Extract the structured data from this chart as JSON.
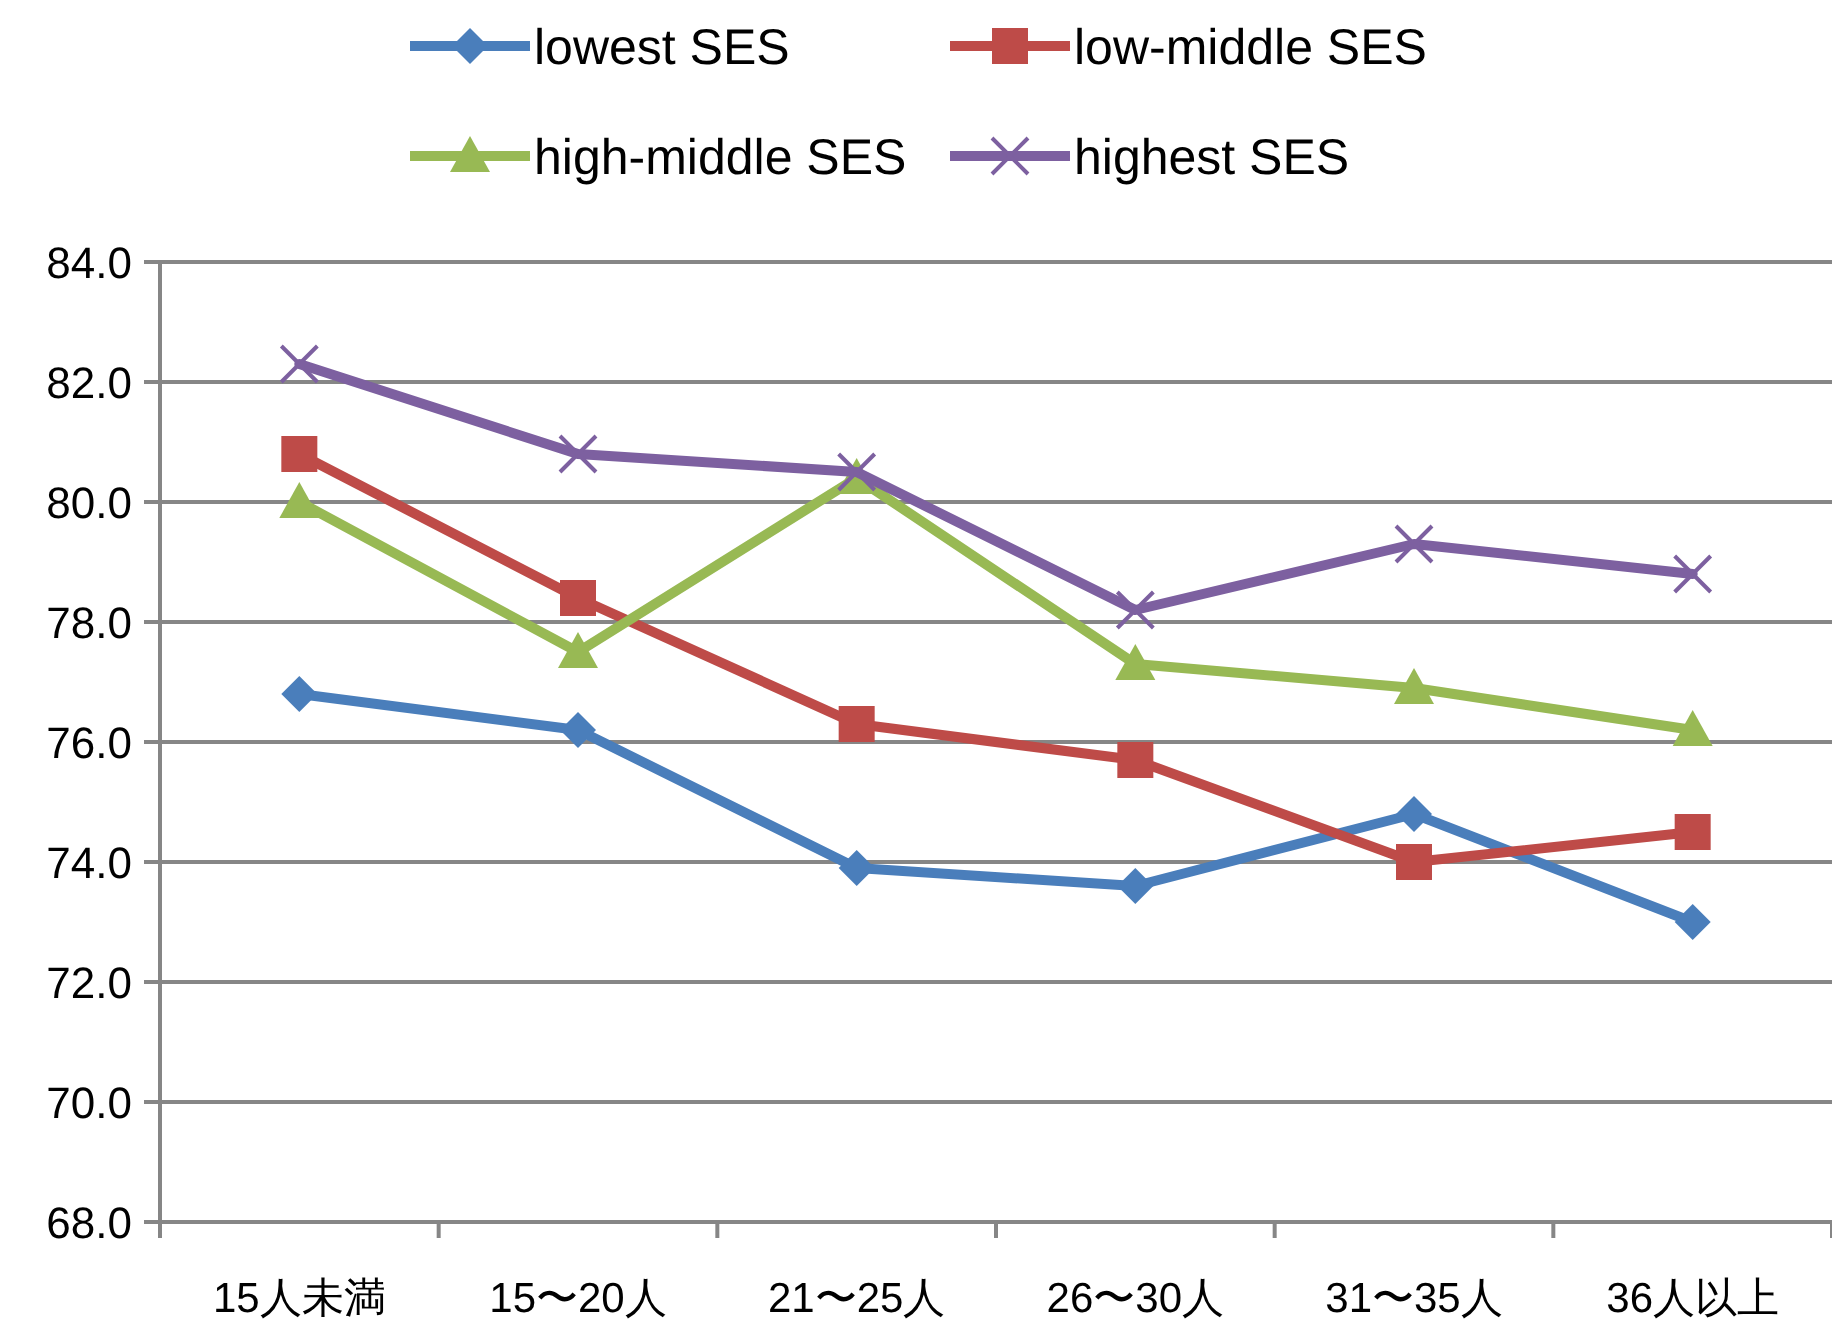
{
  "chart_data": {
    "type": "line",
    "categories": [
      "15人未満",
      "15〜20人",
      "21〜25人",
      "26〜30人",
      "31〜35人",
      "36人以上"
    ],
    "series": [
      {
        "name": "lowest SES",
        "color": "#4a7ebb",
        "marker": "diamond",
        "values": [
          76.8,
          76.2,
          73.9,
          73.6,
          74.8,
          73.0
        ]
      },
      {
        "name": "low-middle SES",
        "color": "#be4b48",
        "marker": "square",
        "values": [
          80.8,
          78.4,
          76.3,
          75.7,
          74.0,
          74.5
        ]
      },
      {
        "name": "high-middle SES",
        "color": "#98b954",
        "marker": "triangle",
        "values": [
          80.0,
          77.5,
          80.4,
          77.3,
          76.9,
          76.2
        ]
      },
      {
        "name": "highest SES",
        "color": "#7d60a0",
        "marker": "cross",
        "values": [
          82.3,
          80.8,
          80.5,
          78.2,
          79.3,
          78.8
        ]
      }
    ],
    "ylim": [
      68,
      84
    ],
    "yticks": [
      {
        "value": 68,
        "label": "68.0"
      },
      {
        "value": 70,
        "label": "70.0"
      },
      {
        "value": 72,
        "label": "72.0"
      },
      {
        "value": 74,
        "label": "74.0"
      },
      {
        "value": 76,
        "label": "76.0"
      },
      {
        "value": 78,
        "label": "78.0"
      },
      {
        "value": 80,
        "label": "80.0"
      },
      {
        "value": 82,
        "label": "82.0"
      },
      {
        "value": 84,
        "label": "84.0"
      }
    ],
    "grid": "y",
    "legend": "top",
    "line_style": "solid"
  }
}
